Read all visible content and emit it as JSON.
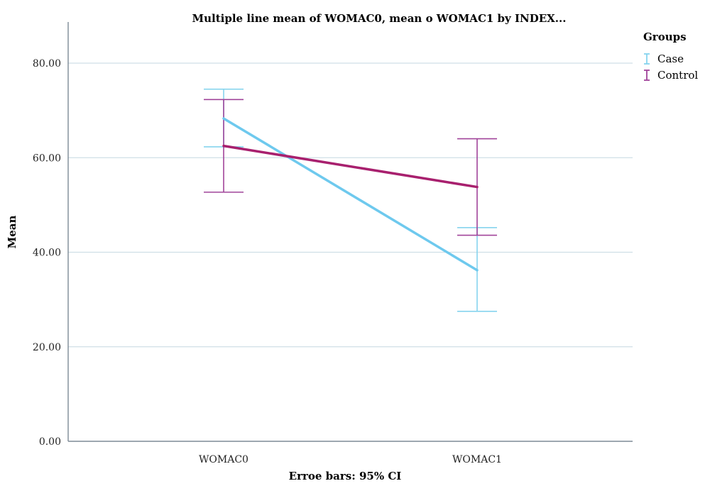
{
  "chart_data": {
    "type": "line",
    "title": "Multiple line mean of WOMAC0, mean o WOMAC1 by INDEX...",
    "xlabel": "Erroe bars: 95% CI",
    "ylabel": "Mean",
    "categories": [
      "WOMAC0",
      "WOMAC1"
    ],
    "ylim": [
      0,
      80
    ],
    "yticks": [
      "0.00",
      "20.00",
      "40.00",
      "60.00",
      "80.00"
    ],
    "grid": true,
    "legend": {
      "title": "Groups",
      "position": "top-right"
    },
    "series": [
      {
        "name": "Case",
        "color": "#6ec9ee",
        "errcolor": "#86d4ee",
        "values": [
          68.3,
          36.2
        ],
        "ci_low": [
          62.3,
          27.5
        ],
        "ci_high": [
          74.5,
          45.2
        ]
      },
      {
        "name": "Control",
        "color": "#a8206e",
        "errcolor": "#a1449a",
        "values": [
          62.5,
          53.8
        ],
        "ci_low": [
          52.7,
          43.6
        ],
        "ci_high": [
          72.3,
          64.0
        ]
      }
    ]
  }
}
